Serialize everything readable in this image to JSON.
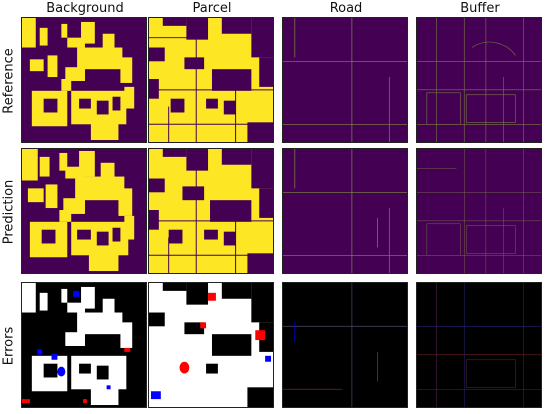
{
  "columns": [
    "Background",
    "Parcel",
    "Road",
    "Buffer"
  ],
  "rows": [
    "Reference",
    "Prediction",
    "Errors"
  ],
  "colors": {
    "class_off": "#440154",
    "class_on": "#fde725",
    "error_bg": "#000000",
    "error_white": "#ffffff",
    "error_red": "#ff0000",
    "error_blue": "#0000ff",
    "road_line": "#8fae3a"
  }
}
